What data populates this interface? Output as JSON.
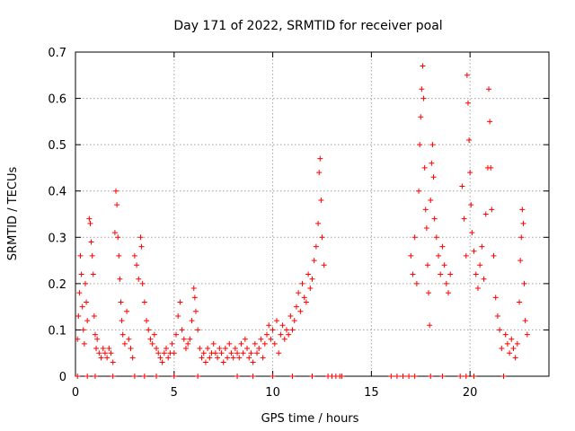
{
  "chart_data": {
    "type": "scatter",
    "title": "Day 171 of 2022, SRMTID for receiver poal",
    "xlabel": "GPS time / hours",
    "ylabel": "SRMTID / TECUs",
    "xlim": [
      0,
      24
    ],
    "ylim": [
      0,
      0.7
    ],
    "x_ticks": [
      0,
      5,
      10,
      15,
      20
    ],
    "y_ticks": [
      0,
      0.1,
      0.2,
      0.3,
      0.4,
      0.5,
      0.6,
      0.7
    ],
    "x_tick_labels": [
      "0",
      "5",
      "10",
      "15",
      "20"
    ],
    "y_tick_labels": [
      "0",
      "0.1",
      "0.2",
      "0.3",
      "0.4",
      "0.5",
      "0.6",
      "0.7"
    ],
    "grid": true,
    "marker": "+",
    "series": [
      {
        "name": "SRMTID",
        "color": "#ff0000",
        "points": [
          [
            0.1,
            0.0
          ],
          [
            0.1,
            0.08
          ],
          [
            0.15,
            0.13
          ],
          [
            0.2,
            0.18
          ],
          [
            0.25,
            0.26
          ],
          [
            0.3,
            0.22
          ],
          [
            0.35,
            0.15
          ],
          [
            0.4,
            0.1
          ],
          [
            0.45,
            0.07
          ],
          [
            0.5,
            0.2
          ],
          [
            0.55,
            0.16
          ],
          [
            0.6,
            0.12
          ],
          [
            0.6,
            0.0
          ],
          [
            0.7,
            0.34
          ],
          [
            0.75,
            0.33
          ],
          [
            0.8,
            0.29
          ],
          [
            0.85,
            0.26
          ],
          [
            0.9,
            0.22
          ],
          [
            0.95,
            0.13
          ],
          [
            1.0,
            0.09
          ],
          [
            1.0,
            0.0
          ],
          [
            1.05,
            0.06
          ],
          [
            1.1,
            0.08
          ],
          [
            1.2,
            0.05
          ],
          [
            1.3,
            0.04
          ],
          [
            1.4,
            0.06
          ],
          [
            1.5,
            0.05
          ],
          [
            1.6,
            0.04
          ],
          [
            1.7,
            0.06
          ],
          [
            1.8,
            0.05
          ],
          [
            1.9,
            0.03
          ],
          [
            1.9,
            0.0
          ],
          [
            2.0,
            0.31
          ],
          [
            2.05,
            0.4
          ],
          [
            2.1,
            0.37
          ],
          [
            2.15,
            0.3
          ],
          [
            2.2,
            0.26
          ],
          [
            2.25,
            0.21
          ],
          [
            2.3,
            0.16
          ],
          [
            2.35,
            0.12
          ],
          [
            2.4,
            0.09
          ],
          [
            2.5,
            0.07
          ],
          [
            2.6,
            0.14
          ],
          [
            2.7,
            0.08
          ],
          [
            2.8,
            0.06
          ],
          [
            2.9,
            0.04
          ],
          [
            3.0,
            0.0
          ],
          [
            3.0,
            0.26
          ],
          [
            3.1,
            0.24
          ],
          [
            3.2,
            0.21
          ],
          [
            3.3,
            0.3
          ],
          [
            3.35,
            0.28
          ],
          [
            3.4,
            0.2
          ],
          [
            3.5,
            0.16
          ],
          [
            3.5,
            0.0
          ],
          [
            3.6,
            0.12
          ],
          [
            3.7,
            0.1
          ],
          [
            3.8,
            0.08
          ],
          [
            3.9,
            0.07
          ],
          [
            4.0,
            0.09
          ],
          [
            4.1,
            0.06
          ],
          [
            4.1,
            0.0
          ],
          [
            4.2,
            0.05
          ],
          [
            4.3,
            0.04
          ],
          [
            4.4,
            0.03
          ],
          [
            4.5,
            0.05
          ],
          [
            4.6,
            0.06
          ],
          [
            4.7,
            0.04
          ],
          [
            4.8,
            0.05
          ],
          [
            4.9,
            0.07
          ],
          [
            5.0,
            0.05
          ],
          [
            5.0,
            0.0
          ],
          [
            5.1,
            0.09
          ],
          [
            5.2,
            0.13
          ],
          [
            5.3,
            0.16
          ],
          [
            5.4,
            0.1
          ],
          [
            5.5,
            0.08
          ],
          [
            5.6,
            0.06
          ],
          [
            5.7,
            0.07
          ],
          [
            5.8,
            0.08
          ],
          [
            5.9,
            0.12
          ],
          [
            6.0,
            0.19
          ],
          [
            6.05,
            0.17
          ],
          [
            6.1,
            0.14
          ],
          [
            6.2,
            0.1
          ],
          [
            6.2,
            0.0
          ],
          [
            6.3,
            0.06
          ],
          [
            6.4,
            0.04
          ],
          [
            6.5,
            0.05
          ],
          [
            6.6,
            0.03
          ],
          [
            6.7,
            0.06
          ],
          [
            6.8,
            0.04
          ],
          [
            6.9,
            0.05
          ],
          [
            7.0,
            0.07
          ],
          [
            7.1,
            0.05
          ],
          [
            7.2,
            0.04
          ],
          [
            7.3,
            0.06
          ],
          [
            7.4,
            0.05
          ],
          [
            7.5,
            0.03
          ],
          [
            7.6,
            0.06
          ],
          [
            7.7,
            0.04
          ],
          [
            7.8,
            0.07
          ],
          [
            7.9,
            0.05
          ],
          [
            8.0,
            0.04
          ],
          [
            8.1,
            0.06
          ],
          [
            8.2,
            0.05
          ],
          [
            8.2,
            0.0
          ],
          [
            8.3,
            0.04
          ],
          [
            8.4,
            0.07
          ],
          [
            8.5,
            0.05
          ],
          [
            8.6,
            0.08
          ],
          [
            8.7,
            0.06
          ],
          [
            8.8,
            0.04
          ],
          [
            8.9,
            0.05
          ],
          [
            9.0,
            0.03
          ],
          [
            9.0,
            0.0
          ],
          [
            9.1,
            0.07
          ],
          [
            9.2,
            0.05
          ],
          [
            9.3,
            0.06
          ],
          [
            9.4,
            0.08
          ],
          [
            9.5,
            0.04
          ],
          [
            9.6,
            0.07
          ],
          [
            9.7,
            0.09
          ],
          [
            9.8,
            0.11
          ],
          [
            9.9,
            0.08
          ],
          [
            10.0,
            0.1
          ],
          [
            10.0,
            0.0
          ],
          [
            10.1,
            0.07
          ],
          [
            10.2,
            0.12
          ],
          [
            10.3,
            0.05
          ],
          [
            10.4,
            0.09
          ],
          [
            10.5,
            0.11
          ],
          [
            10.6,
            0.08
          ],
          [
            10.7,
            0.1
          ],
          [
            10.8,
            0.09
          ],
          [
            10.9,
            0.13
          ],
          [
            11.0,
            0.1
          ],
          [
            11.0,
            0.0
          ],
          [
            11.1,
            0.12
          ],
          [
            11.2,
            0.15
          ],
          [
            11.3,
            0.18
          ],
          [
            11.4,
            0.14
          ],
          [
            11.5,
            0.2
          ],
          [
            11.6,
            0.17
          ],
          [
            11.7,
            0.16
          ],
          [
            11.8,
            0.22
          ],
          [
            11.9,
            0.19
          ],
          [
            12.0,
            0.21
          ],
          [
            12.0,
            0.0
          ],
          [
            12.1,
            0.25
          ],
          [
            12.2,
            0.28
          ],
          [
            12.3,
            0.33
          ],
          [
            12.35,
            0.44
          ],
          [
            12.4,
            0.47
          ],
          [
            12.45,
            0.38
          ],
          [
            12.5,
            0.3
          ],
          [
            12.6,
            0.24
          ],
          [
            12.8,
            0.0
          ],
          [
            13.0,
            0.0
          ],
          [
            13.2,
            0.0
          ],
          [
            13.4,
            0.0
          ],
          [
            13.5,
            0.0
          ],
          [
            16.0,
            0.0
          ],
          [
            16.3,
            0.0
          ],
          [
            16.6,
            0.0
          ],
          [
            16.9,
            0.0
          ],
          [
            17.2,
            0.0
          ],
          [
            17.0,
            0.26
          ],
          [
            17.1,
            0.22
          ],
          [
            17.2,
            0.3
          ],
          [
            17.3,
            0.2
          ],
          [
            17.4,
            0.4
          ],
          [
            17.45,
            0.5
          ],
          [
            17.5,
            0.56
          ],
          [
            17.55,
            0.62
          ],
          [
            17.6,
            0.67
          ],
          [
            17.65,
            0.6
          ],
          [
            17.7,
            0.45
          ],
          [
            17.75,
            0.36
          ],
          [
            17.8,
            0.32
          ],
          [
            17.85,
            0.24
          ],
          [
            17.9,
            0.18
          ],
          [
            17.95,
            0.11
          ],
          [
            18.0,
            0.38
          ],
          [
            18.05,
            0.46
          ],
          [
            18.1,
            0.5
          ],
          [
            18.15,
            0.43
          ],
          [
            18.2,
            0.34
          ],
          [
            18.3,
            0.3
          ],
          [
            18.4,
            0.26
          ],
          [
            18.5,
            0.22
          ],
          [
            18.6,
            0.28
          ],
          [
            18.7,
            0.24
          ],
          [
            18.8,
            0.2
          ],
          [
            18.9,
            0.18
          ],
          [
            19.0,
            0.22
          ],
          [
            18.0,
            0.0
          ],
          [
            18.6,
            0.0
          ],
          [
            19.5,
            0.0
          ],
          [
            19.8,
            0.0
          ],
          [
            20.2,
            0.0
          ],
          [
            19.6,
            0.41
          ],
          [
            19.7,
            0.34
          ],
          [
            19.8,
            0.26
          ],
          [
            19.85,
            0.65
          ],
          [
            19.9,
            0.59
          ],
          [
            19.95,
            0.51
          ],
          [
            20.0,
            0.44
          ],
          [
            20.05,
            0.37
          ],
          [
            20.1,
            0.31
          ],
          [
            20.2,
            0.27
          ],
          [
            20.3,
            0.22
          ],
          [
            20.4,
            0.19
          ],
          [
            20.5,
            0.24
          ],
          [
            20.6,
            0.28
          ],
          [
            20.7,
            0.21
          ],
          [
            20.8,
            0.35
          ],
          [
            20.9,
            0.45
          ],
          [
            20.95,
            0.62
          ],
          [
            21.0,
            0.55
          ],
          [
            21.05,
            0.45
          ],
          [
            21.1,
            0.36
          ],
          [
            21.2,
            0.26
          ],
          [
            21.3,
            0.17
          ],
          [
            21.4,
            0.13
          ],
          [
            21.5,
            0.1
          ],
          [
            21.6,
            0.06
          ],
          [
            21.7,
            0.0
          ],
          [
            21.8,
            0.09
          ],
          [
            21.9,
            0.07
          ],
          [
            22.0,
            0.05
          ],
          [
            22.1,
            0.08
          ],
          [
            22.2,
            0.06
          ],
          [
            22.3,
            0.04
          ],
          [
            22.4,
            0.07
          ],
          [
            22.5,
            0.16
          ],
          [
            22.55,
            0.25
          ],
          [
            22.6,
            0.3
          ],
          [
            22.65,
            0.36
          ],
          [
            22.7,
            0.33
          ],
          [
            22.75,
            0.2
          ],
          [
            22.8,
            0.12
          ],
          [
            22.9,
            0.09
          ]
        ]
      }
    ]
  }
}
